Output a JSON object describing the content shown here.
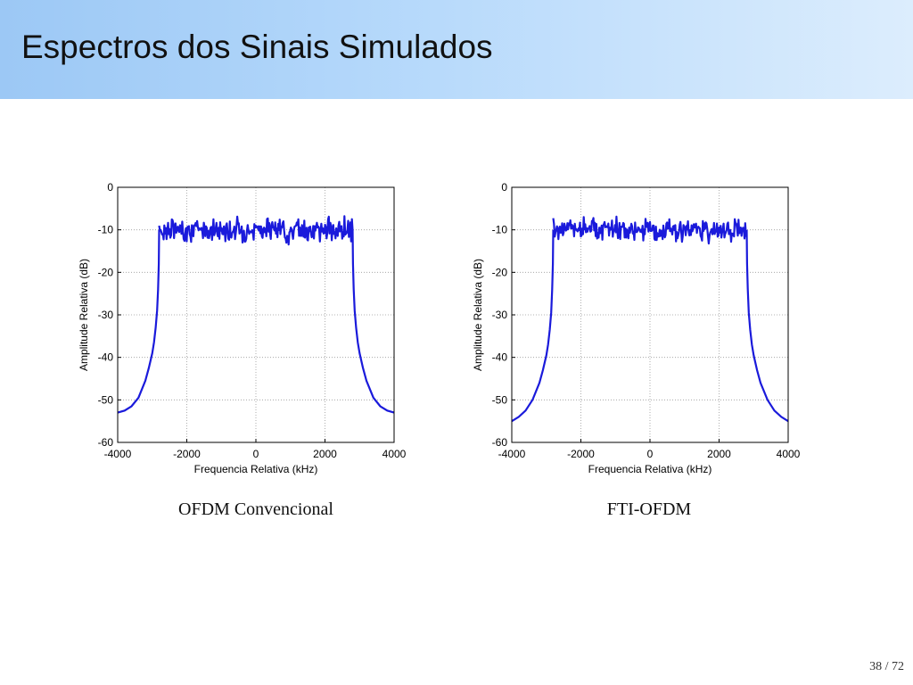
{
  "slide": {
    "title": "Espectros dos Sinais Simulados",
    "page_current": "38",
    "page_sep": "/",
    "page_total": "72"
  },
  "colors": {
    "header_start": "#9cc8f5",
    "header_end": "#dcedfd",
    "series": "#1a1adb"
  },
  "chart_data": [
    {
      "type": "line",
      "caption": "OFDM Convencional",
      "xlabel": "Frequencia Relativa (kHz)",
      "ylabel": "Amplitude Relativa (dB)",
      "xlim": [
        -4000,
        4000
      ],
      "ylim": [
        -60,
        0
      ],
      "xticks": [
        -4000,
        -2000,
        0,
        2000,
        4000
      ],
      "yticks": [
        0,
        -10,
        -20,
        -30,
        -40,
        -50,
        -60
      ],
      "grid": true,
      "band": {
        "start": -2800,
        "end": 2800,
        "level_db": -10,
        "noise_db": 1.3
      },
      "series": [
        {
          "x": [
            -4000,
            -3800,
            -3600,
            -3400,
            -3200,
            -3100,
            -3000,
            -2950,
            -2900,
            -2860,
            -2830,
            -2810,
            -2800
          ],
          "y": [
            -53,
            -52.5,
            -51.5,
            -49.5,
            -45.5,
            -42.5,
            -39,
            -36.5,
            -33,
            -29,
            -24,
            -18,
            -10
          ]
        },
        {
          "x": [
            2800,
            2810,
            2830,
            2860,
            2900,
            2950,
            3000,
            3100,
            3200,
            3400,
            3600,
            3800,
            4000
          ],
          "y": [
            -10,
            -18,
            -24,
            -29,
            -33,
            -36.5,
            -39,
            -42.5,
            -45.5,
            -49.5,
            -51.5,
            -52.5,
            -53
          ]
        }
      ]
    },
    {
      "type": "line",
      "caption": "FTI-OFDM",
      "xlabel": "Frequencia Relativa (kHz)",
      "ylabel": "Amplitude Relativa (dB)",
      "xlim": [
        -4000,
        4000
      ],
      "ylim": [
        -60,
        0
      ],
      "xticks": [
        -4000,
        -2000,
        0,
        2000,
        4000
      ],
      "yticks": [
        0,
        -10,
        -20,
        -30,
        -40,
        -50,
        -60
      ],
      "grid": true,
      "band": {
        "start": -2800,
        "end": 2800,
        "level_db": -10,
        "noise_db": 1.3
      },
      "series": [
        {
          "x": [
            -4000,
            -3800,
            -3600,
            -3400,
            -3200,
            -3100,
            -3000,
            -2950,
            -2900,
            -2860,
            -2830,
            -2810,
            -2800
          ],
          "y": [
            -55,
            -54,
            -52.5,
            -50,
            -46,
            -43,
            -39.5,
            -37,
            -33.5,
            -29.5,
            -24,
            -18,
            -10
          ]
        },
        {
          "x": [
            2800,
            2810,
            2830,
            2860,
            2900,
            2950,
            3000,
            3100,
            3200,
            3400,
            3600,
            3800,
            4000
          ],
          "y": [
            -10,
            -18,
            -24,
            -29.5,
            -33.5,
            -37,
            -39.5,
            -43,
            -46,
            -50,
            -52.5,
            -54,
            -55
          ]
        }
      ]
    }
  ]
}
